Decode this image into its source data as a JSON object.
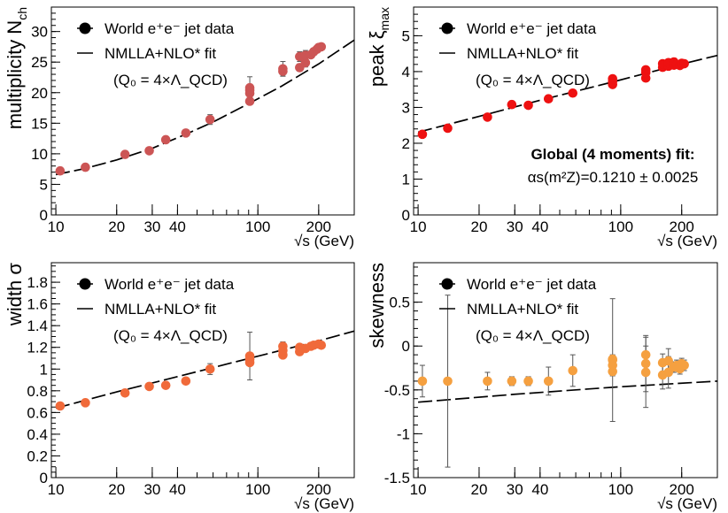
{
  "figure": {
    "background": "#ffffff"
  },
  "chart_data": [
    {
      "type": "scatter",
      "id": "multiplicity",
      "xscale": "log",
      "xlim": [
        9.5,
        300
      ],
      "ylim": [
        0,
        34
      ],
      "ylabel": "multiplicity N",
      "ylabel_sub": "ch",
      "xlabel": "√s (GeV)",
      "xticks_major": [
        10,
        20,
        30,
        40,
        100,
        200
      ],
      "yticks_major": [
        0,
        5,
        10,
        15,
        20,
        25,
        30
      ],
      "yticks_minor_step": 1,
      "marker_color": "#cc5555",
      "legend": {
        "position": "top-left",
        "data_label": "World e⁺e⁻ jet data",
        "fit_label": "NMLLA+NLO* fit",
        "fit_note": "(Q₀ = 4×Λ_QCD)"
      },
      "series": [
        {
          "name": "World e⁺e⁻ jet data",
          "points": [
            {
              "x": 10.5,
              "y": 7.2,
              "err": 0.3
            },
            {
              "x": 14,
              "y": 7.8,
              "err": 0.3
            },
            {
              "x": 22,
              "y": 9.9,
              "err": 0.4
            },
            {
              "x": 29,
              "y": 10.5,
              "err": 0.4
            },
            {
              "x": 35,
              "y": 12.3,
              "err": 0.4
            },
            {
              "x": 44,
              "y": 13.4,
              "err": 0.5
            },
            {
              "x": 58,
              "y": 15.6,
              "err": 0.8
            },
            {
              "x": 91.2,
              "y": 18.6,
              "err": 0.3
            },
            {
              "x": 91.2,
              "y": 19.9,
              "err": 0.3
            },
            {
              "x": 91.2,
              "y": 20.4,
              "err": 0.3
            },
            {
              "x": 91.2,
              "y": 20.8,
              "err": 1.8
            },
            {
              "x": 133,
              "y": 23.5,
              "err": 0.8
            },
            {
              "x": 133,
              "y": 23.9,
              "err": 1.2
            },
            {
              "x": 161,
              "y": 24.1,
              "err": 0.6
            },
            {
              "x": 161,
              "y": 25.9,
              "err": 0.8
            },
            {
              "x": 172,
              "y": 24.9,
              "err": 0.7
            },
            {
              "x": 172,
              "y": 26.1,
              "err": 0.8
            },
            {
              "x": 183,
              "y": 26.2,
              "err": 0.5
            },
            {
              "x": 189,
              "y": 26.7,
              "err": 0.5
            },
            {
              "x": 196,
              "y": 27.1,
              "err": 0.5
            },
            {
              "x": 200,
              "y": 27.4,
              "err": 0.5
            },
            {
              "x": 206,
              "y": 27.5,
              "err": 0.5
            }
          ]
        },
        {
          "name": "NMLLA+NLO* fit",
          "style": "dashed",
          "points": [
            {
              "x": 10,
              "y": 6.6
            },
            {
              "x": 14,
              "y": 7.6
            },
            {
              "x": 20,
              "y": 9.0
            },
            {
              "x": 30,
              "y": 10.9
            },
            {
              "x": 44,
              "y": 13.2
            },
            {
              "x": 60,
              "y": 15.2
            },
            {
              "x": 91.2,
              "y": 18.3
            },
            {
              "x": 130,
              "y": 21.0
            },
            {
              "x": 200,
              "y": 24.7
            },
            {
              "x": 300,
              "y": 28.6
            }
          ]
        }
      ]
    },
    {
      "type": "scatter",
      "id": "peak",
      "xscale": "log",
      "xlim": [
        9.5,
        300
      ],
      "ylim": [
        0,
        5.8
      ],
      "ylabel": "peak ξ",
      "ylabel_sub": "max",
      "xlabel": "√s (GeV)",
      "xticks_major": [
        10,
        20,
        30,
        40,
        100,
        200
      ],
      "yticks_major": [
        0,
        1,
        2,
        3,
        4,
        5
      ],
      "yticks_minor_step": 0.2,
      "marker_color": "#ee1111",
      "legend": {
        "position": "top-left",
        "data_label": "World e⁺e⁻ jet data",
        "fit_label": "NMLLA+NLO* fit",
        "fit_note": "(Q₀ = 4×Λ_QCD)"
      },
      "annotation": {
        "title": "Global (4 moments) fit:",
        "text": "αs(m²Z)=0.1210 ± 0.0025"
      },
      "series": [
        {
          "name": "World e⁺e⁻ jet data",
          "points": [
            {
              "x": 10.5,
              "y": 2.25,
              "err": 0.04
            },
            {
              "x": 14,
              "y": 2.42,
              "err": 0.04
            },
            {
              "x": 22,
              "y": 2.73,
              "err": 0.04
            },
            {
              "x": 29,
              "y": 3.08,
              "err": 0.04
            },
            {
              "x": 35,
              "y": 3.06,
              "err": 0.04
            },
            {
              "x": 44,
              "y": 3.24,
              "err": 0.04
            },
            {
              "x": 58,
              "y": 3.4,
              "err": 0.05
            },
            {
              "x": 91.2,
              "y": 3.64,
              "err": 0.03
            },
            {
              "x": 91.2,
              "y": 3.72,
              "err": 0.03
            },
            {
              "x": 91.2,
              "y": 3.8,
              "err": 0.03
            },
            {
              "x": 133,
              "y": 3.82,
              "err": 0.05
            },
            {
              "x": 133,
              "y": 3.97,
              "err": 0.05
            },
            {
              "x": 133,
              "y": 4.05,
              "err": 0.05
            },
            {
              "x": 161,
              "y": 4.12,
              "err": 0.05
            },
            {
              "x": 161,
              "y": 4.22,
              "err": 0.05
            },
            {
              "x": 172,
              "y": 4.15,
              "err": 0.05
            },
            {
              "x": 172,
              "y": 4.25,
              "err": 0.05
            },
            {
              "x": 183,
              "y": 4.18,
              "err": 0.04
            },
            {
              "x": 183,
              "y": 4.27,
              "err": 0.04
            },
            {
              "x": 189,
              "y": 4.2,
              "err": 0.04
            },
            {
              "x": 196,
              "y": 4.17,
              "err": 0.04
            },
            {
              "x": 200,
              "y": 4.23,
              "err": 0.04
            },
            {
              "x": 206,
              "y": 4.22,
              "err": 0.04
            }
          ]
        },
        {
          "name": "NMLLA+NLO* fit",
          "style": "dashed",
          "points": [
            {
              "x": 10,
              "y": 2.31
            },
            {
              "x": 20,
              "y": 2.75
            },
            {
              "x": 40,
              "y": 3.2
            },
            {
              "x": 91.2,
              "y": 3.71
            },
            {
              "x": 200,
              "y": 4.21
            },
            {
              "x": 300,
              "y": 4.45
            }
          ]
        }
      ]
    },
    {
      "type": "scatter",
      "id": "width",
      "xscale": "log",
      "xlim": [
        9.5,
        300
      ],
      "ylim": [
        0,
        1.98
      ],
      "ylabel": "width σ",
      "xlabel": "√s (GeV)",
      "xticks_major": [
        10,
        20,
        30,
        40,
        100,
        200
      ],
      "yticks_major": [
        0,
        0.2,
        0.4,
        0.6,
        0.8,
        1.0,
        1.2,
        1.4,
        1.6,
        1.8
      ],
      "yticks_labels": [
        "0",
        "0.2",
        "0.4",
        "0.6",
        "0.8",
        "1",
        "1.2",
        "1.4",
        "1.6",
        "1.8"
      ],
      "yticks_minor_step": 0.05,
      "marker_color": "#f06a3a",
      "legend": {
        "position": "top-left",
        "data_label": "World e⁺e⁻ jet data",
        "fit_label": "NMLLA+NLO* fit",
        "fit_note": "(Q₀ = 4×Λ_QCD)"
      },
      "series": [
        {
          "name": "World e⁺e⁻ jet data",
          "points": [
            {
              "x": 10.5,
              "y": 0.66,
              "err": 0.02
            },
            {
              "x": 14,
              "y": 0.69,
              "err": 0.02
            },
            {
              "x": 22,
              "y": 0.78,
              "err": 0.02
            },
            {
              "x": 29,
              "y": 0.84,
              "err": 0.02
            },
            {
              "x": 35,
              "y": 0.85,
              "err": 0.02
            },
            {
              "x": 44,
              "y": 0.89,
              "err": 0.02
            },
            {
              "x": 58,
              "y": 1.0,
              "err": 0.05
            },
            {
              "x": 91.2,
              "y": 1.06,
              "err": 0.02
            },
            {
              "x": 91.2,
              "y": 1.09,
              "err": 0.02
            },
            {
              "x": 91.2,
              "y": 1.12,
              "err": 0.22
            },
            {
              "x": 133,
              "y": 1.13,
              "err": 0.03
            },
            {
              "x": 133,
              "y": 1.17,
              "err": 0.05
            },
            {
              "x": 133,
              "y": 1.21,
              "err": 0.04
            },
            {
              "x": 161,
              "y": 1.16,
              "err": 0.03
            },
            {
              "x": 161,
              "y": 1.2,
              "err": 0.03
            },
            {
              "x": 172,
              "y": 1.19,
              "err": 0.03
            },
            {
              "x": 183,
              "y": 1.21,
              "err": 0.03
            },
            {
              "x": 189,
              "y": 1.22,
              "err": 0.03
            },
            {
              "x": 200,
              "y": 1.23,
              "err": 0.03
            },
            {
              "x": 206,
              "y": 1.22,
              "err": 0.03
            }
          ]
        },
        {
          "name": "NMLLA+NLO* fit",
          "style": "dashed",
          "points": [
            {
              "x": 10,
              "y": 0.64
            },
            {
              "x": 20,
              "y": 0.79
            },
            {
              "x": 40,
              "y": 0.93
            },
            {
              "x": 91.2,
              "y": 1.1
            },
            {
              "x": 200,
              "y": 1.26
            },
            {
              "x": 300,
              "y": 1.35
            }
          ]
        }
      ]
    },
    {
      "type": "scatter",
      "id": "skewness",
      "xscale": "log",
      "xlim": [
        9.5,
        300
      ],
      "ylim": [
        -1.5,
        0.95
      ],
      "ylabel": "skewness",
      "xlabel": "√s (GeV)",
      "xticks_major": [
        10,
        20,
        30,
        40,
        100,
        200
      ],
      "yticks_major": [
        -1.5,
        -1,
        -0.5,
        0,
        0.5
      ],
      "yticks_minor_step": 0.1,
      "marker_color": "#f5a040",
      "legend": {
        "position": "top-left",
        "data_label": "World e⁺e⁻ jet data",
        "fit_label": "NMLLA+NLO* fit",
        "fit_note": "(Q₀ = 4×Λ_QCD)"
      },
      "series": [
        {
          "name": "World e⁺e⁻ jet data",
          "points": [
            {
              "x": 10.5,
              "y": -0.4,
              "err": 0.18
            },
            {
              "x": 14,
              "y": -0.4,
              "err": 0.98
            },
            {
              "x": 22,
              "y": -0.4,
              "err": 0.1
            },
            {
              "x": 29,
              "y": -0.4,
              "err": 0.05
            },
            {
              "x": 35,
              "y": -0.4,
              "err": 0.05
            },
            {
              "x": 44,
              "y": -0.4,
              "err": 0.16
            },
            {
              "x": 58,
              "y": -0.28,
              "err": 0.18
            },
            {
              "x": 91.2,
              "y": -0.15,
              "err": 0.05
            },
            {
              "x": 91.2,
              "y": -0.22,
              "err": 0.05
            },
            {
              "x": 91.2,
              "y": -0.29,
              "err": 0.05
            },
            {
              "x": 91.2,
              "y": -0.16,
              "err": 0.7
            },
            {
              "x": 133,
              "y": -0.1,
              "err": 0.1
            },
            {
              "x": 133,
              "y": -0.2,
              "err": 0.32
            },
            {
              "x": 133,
              "y": -0.3,
              "err": 0.4
            },
            {
              "x": 161,
              "y": -0.19,
              "err": 0.1
            },
            {
              "x": 161,
              "y": -0.33,
              "err": 0.16
            },
            {
              "x": 172,
              "y": -0.17,
              "err": 0.14
            },
            {
              "x": 172,
              "y": -0.3,
              "err": 0.18
            },
            {
              "x": 183,
              "y": -0.24,
              "err": 0.06
            },
            {
              "x": 189,
              "y": -0.22,
              "err": 0.06
            },
            {
              "x": 196,
              "y": -0.26,
              "err": 0.06
            },
            {
              "x": 200,
              "y": -0.2,
              "err": 0.06
            },
            {
              "x": 206,
              "y": -0.22,
              "err": 0.06
            }
          ]
        },
        {
          "name": "NMLLA+NLO* fit",
          "style": "dashed",
          "points": [
            {
              "x": 10,
              "y": -0.64
            },
            {
              "x": 30,
              "y": -0.55
            },
            {
              "x": 91.2,
              "y": -0.47
            },
            {
              "x": 300,
              "y": -0.4
            }
          ]
        }
      ]
    }
  ]
}
